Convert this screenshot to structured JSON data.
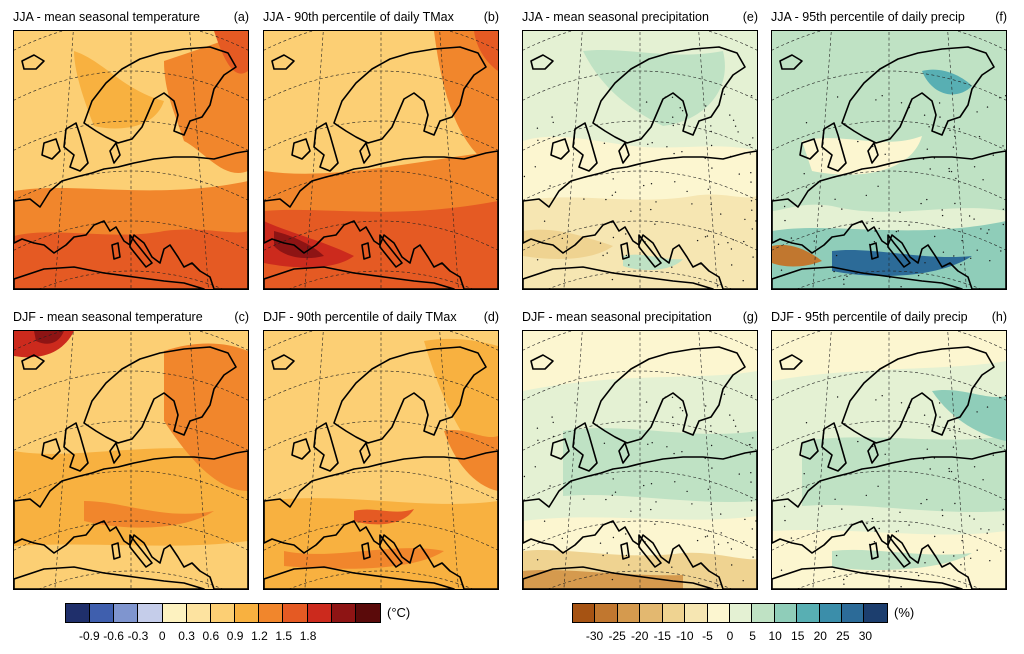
{
  "panels": [
    {
      "id": "a",
      "title": "JJA - mean seasonal temperature",
      "label": "(a)",
      "variable": "temperature",
      "theme": "warm-summer-mean"
    },
    {
      "id": "b",
      "title": "JJA - 90th percentile of daily TMax",
      "label": "(b)",
      "variable": "temperature",
      "theme": "warm-summer-extreme"
    },
    {
      "id": "e",
      "title": "JJA - mean seasonal precipitation",
      "label": "(e)",
      "variable": "precipitation",
      "theme": "precip-summer-mean"
    },
    {
      "id": "f",
      "title": "JJA - 95th percentile of daily precip",
      "label": "(f)",
      "variable": "precipitation",
      "theme": "precip-summer-extreme"
    },
    {
      "id": "c",
      "title": "DJF - mean seasonal temperature",
      "label": "(c)",
      "variable": "temperature",
      "theme": "warm-winter-mean"
    },
    {
      "id": "d",
      "title": "DJF - 90th percentile of daily TMax",
      "label": "(d)",
      "variable": "temperature",
      "theme": "warm-winter-extreme"
    },
    {
      "id": "g",
      "title": "DJF - mean seasonal precipitation",
      "label": "(g)",
      "variable": "precipitation",
      "theme": "precip-winter-mean"
    },
    {
      "id": "h",
      "title": "DJF - 95th percentile of daily precip",
      "label": "(h)",
      "variable": "precipitation",
      "theme": "precip-winter-extreme"
    }
  ],
  "temperature_colorbar": {
    "unit": "(°C)",
    "colors": [
      "#1f2f6b",
      "#3f5fae",
      "#7f95cf",
      "#c5cdea",
      "#fdf2c0",
      "#fde3a0",
      "#fccf74",
      "#f8b140",
      "#f1862c",
      "#e55a23",
      "#cc2a1d",
      "#8e1414",
      "#5a0a0a"
    ],
    "tick_labels": [
      "-0.9",
      "-0.6",
      "-0.3",
      "0",
      "0.3",
      "0.6",
      "0.9",
      "1.2",
      "1.5",
      "1.8"
    ]
  },
  "precipitation_colorbar": {
    "unit": "(%)",
    "colors": [
      "#a65313",
      "#c1772f",
      "#d59a4e",
      "#e3b870",
      "#efd391",
      "#f6e6b2",
      "#fcf6d0",
      "#e4f1d3",
      "#bfe2c4",
      "#8fcdb9",
      "#58afb3",
      "#3b8eaa",
      "#2c6b98",
      "#1c3e6e"
    ],
    "tick_labels": [
      "-30",
      "-25",
      "-20",
      "-15",
      "-10",
      "-5",
      "0",
      "5",
      "10",
      "15",
      "20",
      "25",
      "30"
    ]
  }
}
